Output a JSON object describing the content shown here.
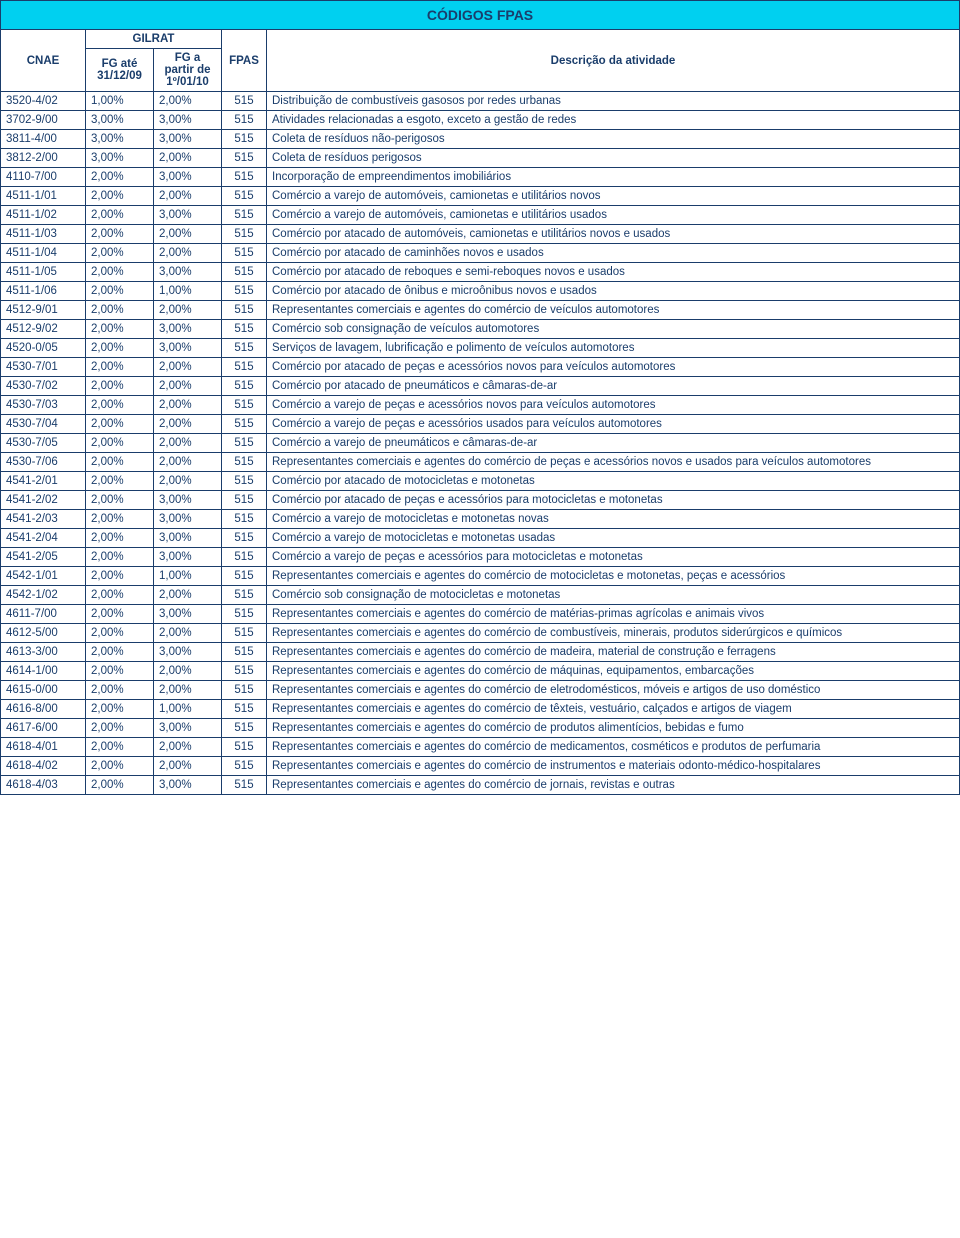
{
  "title": "CÓDIGOS FPAS",
  "headers": {
    "cnae": "CNAE",
    "gilrat": "GILRAT",
    "fg_ate": "FG até 31/12/09",
    "fg_apartir": "FG a partir de 1º/01/10",
    "fpas": "FPAS",
    "desc": "Descrição da atividade"
  },
  "rows": [
    {
      "cnae": "3520-4/02",
      "fg1": "1,00%",
      "fg2": "2,00%",
      "fpas": "515",
      "desc": "Distribuição de combustíveis gasosos por redes urbanas"
    },
    {
      "cnae": "3702-9/00",
      "fg1": "3,00%",
      "fg2": "3,00%",
      "fpas": "515",
      "desc": "Atividades relacionadas a esgoto, exceto a gestão de redes"
    },
    {
      "cnae": "3811-4/00",
      "fg1": "3,00%",
      "fg2": "3,00%",
      "fpas": "515",
      "desc": "Coleta de resíduos não-perigosos"
    },
    {
      "cnae": "3812-2/00",
      "fg1": "3,00%",
      "fg2": "2,00%",
      "fpas": "515",
      "desc": "Coleta de resíduos perigosos"
    },
    {
      "cnae": "4110-7/00",
      "fg1": "2,00%",
      "fg2": "3,00%",
      "fpas": "515",
      "desc": "Incorporação de empreendimentos imobiliários"
    },
    {
      "cnae": "4511-1/01",
      "fg1": "2,00%",
      "fg2": "2,00%",
      "fpas": "515",
      "desc": "Comércio a varejo de automóveis, camionetas e utilitários novos"
    },
    {
      "cnae": "4511-1/02",
      "fg1": "2,00%",
      "fg2": "3,00%",
      "fpas": "515",
      "desc": "Comércio a varejo de automóveis, camionetas e utilitários usados"
    },
    {
      "cnae": "4511-1/03",
      "fg1": "2,00%",
      "fg2": "2,00%",
      "fpas": "515",
      "desc": "Comércio por atacado de automóveis, camionetas e utilitários novos e usados"
    },
    {
      "cnae": "4511-1/04",
      "fg1": "2,00%",
      "fg2": "2,00%",
      "fpas": "515",
      "desc": "Comércio por atacado de caminhões novos e usados"
    },
    {
      "cnae": "4511-1/05",
      "fg1": "2,00%",
      "fg2": "3,00%",
      "fpas": "515",
      "desc": "Comércio por atacado de reboques e semi-reboques novos e usados"
    },
    {
      "cnae": "4511-1/06",
      "fg1": "2,00%",
      "fg2": "1,00%",
      "fpas": "515",
      "desc": "Comércio por atacado de ônibus e microônibus novos e usados"
    },
    {
      "cnae": "4512-9/01",
      "fg1": "2,00%",
      "fg2": "2,00%",
      "fpas": "515",
      "desc": "Representantes comerciais e agentes do comércio de veículos automotores"
    },
    {
      "cnae": "4512-9/02",
      "fg1": "2,00%",
      "fg2": "3,00%",
      "fpas": "515",
      "desc": "Comércio sob consignação de veículos automotores"
    },
    {
      "cnae": "4520-0/05",
      "fg1": "2,00%",
      "fg2": "3,00%",
      "fpas": "515",
      "desc": "Serviços de lavagem, lubrificação e polimento de veículos automotores"
    },
    {
      "cnae": "4530-7/01",
      "fg1": "2,00%",
      "fg2": "2,00%",
      "fpas": "515",
      "desc": "Comércio por atacado de peças e acessórios novos para veículos automotores"
    },
    {
      "cnae": "4530-7/02",
      "fg1": "2,00%",
      "fg2": "2,00%",
      "fpas": "515",
      "desc": "Comércio por atacado de pneumáticos e câmaras-de-ar"
    },
    {
      "cnae": "4530-7/03",
      "fg1": "2,00%",
      "fg2": "2,00%",
      "fpas": "515",
      "desc": "Comércio a varejo de peças e acessórios novos para veículos automotores"
    },
    {
      "cnae": "4530-7/04",
      "fg1": "2,00%",
      "fg2": "2,00%",
      "fpas": "515",
      "desc": "Comércio a varejo de peças e acessórios usados para veículos automotores"
    },
    {
      "cnae": "4530-7/05",
      "fg1": "2,00%",
      "fg2": "2,00%",
      "fpas": "515",
      "desc": "Comércio a varejo de pneumáticos e câmaras-de-ar"
    },
    {
      "cnae": "4530-7/06",
      "fg1": "2,00%",
      "fg2": "2,00%",
      "fpas": "515",
      "desc": "Representantes comerciais e agentes do comércio de peças e acessórios novos e usados para veículos automotores",
      "justify": true
    },
    {
      "cnae": "4541-2/01",
      "fg1": "2,00%",
      "fg2": "2,00%",
      "fpas": "515",
      "desc": "Comércio por atacado de motocicletas e motonetas"
    },
    {
      "cnae": "4541-2/02",
      "fg1": "2,00%",
      "fg2": "3,00%",
      "fpas": "515",
      "desc": "Comércio por atacado de peças e acessórios para motocicletas e motonetas"
    },
    {
      "cnae": "4541-2/03",
      "fg1": "2,00%",
      "fg2": "3,00%",
      "fpas": "515",
      "desc": "Comércio a varejo de motocicletas e motonetas novas"
    },
    {
      "cnae": "4541-2/04",
      "fg1": "2,00%",
      "fg2": "3,00%",
      "fpas": "515",
      "desc": "Comércio a varejo de motocicletas e motonetas usadas"
    },
    {
      "cnae": "4541-2/05",
      "fg1": "2,00%",
      "fg2": "3,00%",
      "fpas": "515",
      "desc": "Comércio a varejo de peças e acessórios para motocicletas e motonetas"
    },
    {
      "cnae": "4542-1/01",
      "fg1": "2,00%",
      "fg2": "1,00%",
      "fpas": "515",
      "desc": "Representantes comerciais e agentes do comércio de motocicletas e motonetas, peças e acessórios",
      "justify": true
    },
    {
      "cnae": "4542-1/02",
      "fg1": "2,00%",
      "fg2": "2,00%",
      "fpas": "515",
      "desc": "Comércio sob consignação de motocicletas e motonetas"
    },
    {
      "cnae": "4611-7/00",
      "fg1": "2,00%",
      "fg2": "3,00%",
      "fpas": "515",
      "desc": "Representantes comerciais e agentes do comércio de matérias-primas agrícolas e animais vivos",
      "justify": true
    },
    {
      "cnae": "4612-5/00",
      "fg1": "2,00%",
      "fg2": "2,00%",
      "fpas": "515",
      "desc": "Representantes comerciais e agentes do comércio de combustíveis, minerais, produtos siderúrgicos e químicos",
      "justify": true
    },
    {
      "cnae": "4613-3/00",
      "fg1": "2,00%",
      "fg2": "3,00%",
      "fpas": "515",
      "desc": "Representantes comerciais e agentes do comércio de madeira, material de construção e ferragens",
      "justify": true
    },
    {
      "cnae": "4614-1/00",
      "fg1": "2,00%",
      "fg2": "2,00%",
      "fpas": "515",
      "desc": "Representantes comerciais e agentes do comércio de máquinas, equipamentos, embarcações",
      "justify": true
    },
    {
      "cnae": "4615-0/00",
      "fg1": "2,00%",
      "fg2": "2,00%",
      "fpas": "515",
      "desc": "Representantes comerciais e agentes do comércio de eletrodomésticos, móveis e artigos de uso doméstico",
      "justify": true
    },
    {
      "cnae": "4616-8/00",
      "fg1": "2,00%",
      "fg2": "1,00%",
      "fpas": "515",
      "desc": "Representantes comerciais e agentes do comércio de têxteis, vestuário, calçados e artigos de viagem",
      "justify": true
    },
    {
      "cnae": "4617-6/00",
      "fg1": "2,00%",
      "fg2": "3,00%",
      "fpas": "515",
      "desc": "Representantes comerciais e agentes do comércio de produtos alimentícios, bebidas e fumo",
      "justify": true
    },
    {
      "cnae": "4618-4/01",
      "fg1": "2,00%",
      "fg2": "2,00%",
      "fpas": "515",
      "desc": "Representantes comerciais e agentes do comércio de medicamentos, cosméticos e produtos de perfumaria",
      "justify": true
    },
    {
      "cnae": "4618-4/02",
      "fg1": "2,00%",
      "fg2": "2,00%",
      "fpas": "515",
      "desc": "Representantes comerciais e agentes do comércio de instrumentos e materiais odonto-médico-hospitalares",
      "justify": true
    },
    {
      "cnae": "4618-4/03",
      "fg1": "2,00%",
      "fg2": "3,00%",
      "fpas": "515",
      "desc": "Representantes comerciais e agentes do comércio de jornais, revistas e outras"
    }
  ]
}
